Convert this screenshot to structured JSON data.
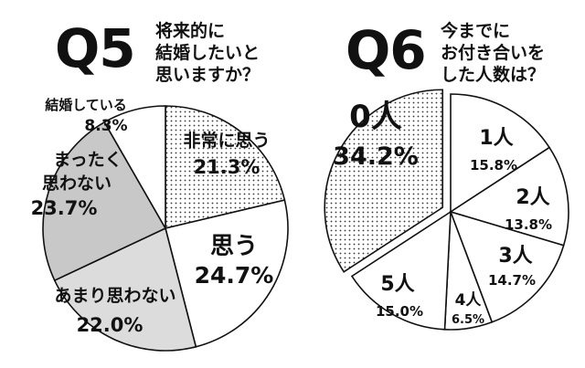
{
  "charts": [
    {
      "number": "Q5",
      "title_lines": [
        "将来的に",
        "結婚したいと",
        "思いますか？"
      ]
    },
    {
      "number": "Q6",
      "title_lines": [
        "今までに",
        "お付き合いを",
        "した人数は？"
      ]
    }
  ],
  "colors": {
    "ink": "#111111",
    "light_gray": "#dcdcdc",
    "mid_gray": "#c8c8c8",
    "white": "#ffffff"
  },
  "chart_data": [
    {
      "type": "pie",
      "title": "将来的に結婚したいと思いますか？",
      "slices": [
        {
          "label": "非常に思う",
          "value": 21.3,
          "display": "21.3%",
          "fill": "dots"
        },
        {
          "label": "思う",
          "value": 24.7,
          "display": "24.7%",
          "fill": "white"
        },
        {
          "label": "あまり思わない",
          "value": 22.0,
          "display": "22.0%",
          "fill": "light"
        },
        {
          "label": "まったく思わない",
          "value": 23.7,
          "display": "23.7%",
          "fill": "mid"
        },
        {
          "label": "結婚している",
          "value": 8.3,
          "display": "8.3%",
          "fill": "white"
        }
      ]
    },
    {
      "type": "pie",
      "title": "今までにお付き合いをした人数は？",
      "slices": [
        {
          "label": "1人",
          "value": 15.8,
          "display": "15.8%",
          "fill": "white"
        },
        {
          "label": "2人",
          "value": 13.8,
          "display": "13.8%",
          "fill": "white"
        },
        {
          "label": "3人",
          "value": 14.7,
          "display": "14.7%",
          "fill": "white"
        },
        {
          "label": "4人",
          "value": 6.5,
          "display": "6.5%",
          "fill": "white"
        },
        {
          "label": "5人",
          "value": 15.0,
          "display": "15.0%",
          "fill": "white"
        },
        {
          "label": "0人",
          "value": 34.2,
          "display": "34.2%",
          "fill": "dots",
          "exploded": true
        }
      ]
    }
  ]
}
